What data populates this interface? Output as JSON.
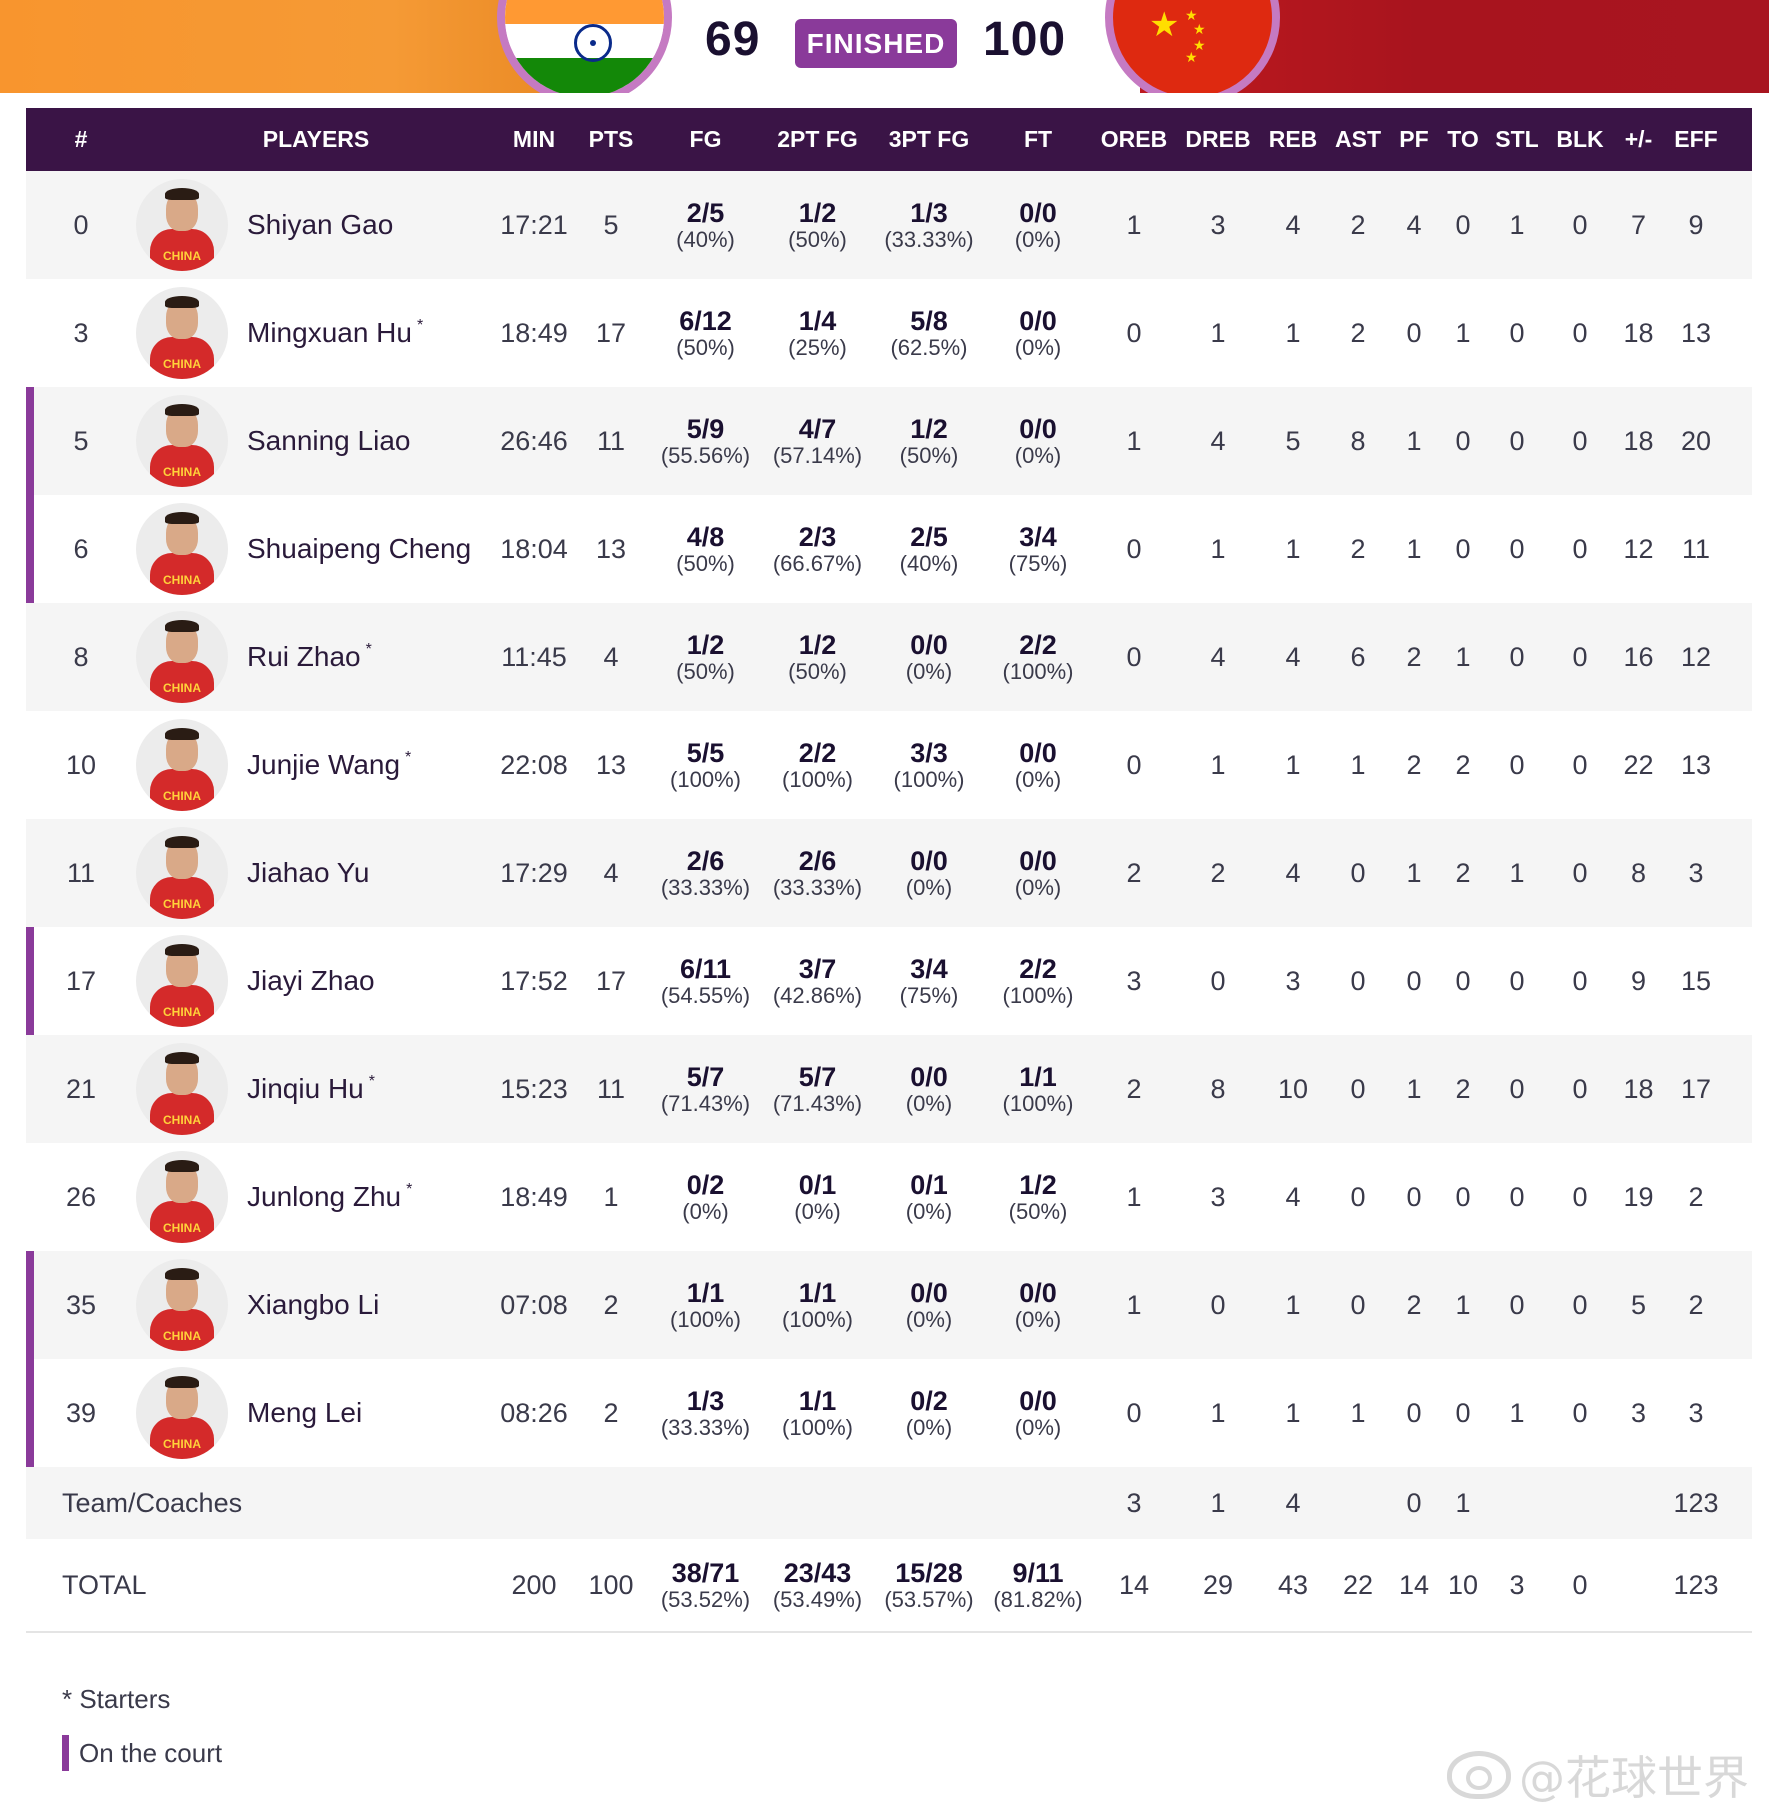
{
  "header": {
    "home_score": "69",
    "status": "FINISHED",
    "away_score": "100",
    "home_flag": "india-flag-icon",
    "away_flag": "china-flag-icon"
  },
  "colors": {
    "accent": "#8a3a9a",
    "header_bg": "#3a1446",
    "banner_left": "#f8952e",
    "banner_right": "#a8141e"
  },
  "columns": [
    "#",
    "PLAYERS",
    "MIN",
    "PTS",
    "FG",
    "2PT FG",
    "3PT FG",
    "FT",
    "OREB",
    "DREB",
    "REB",
    "AST",
    "PF",
    "TO",
    "STL",
    "BLK",
    "+/-",
    "EFF"
  ],
  "jersey_text": "CHINA",
  "starter_mark": "*",
  "players": [
    {
      "num": "0",
      "name": "Shiyan Gao",
      "starter": false,
      "oncourt": false,
      "min": "17:21",
      "pts": "5",
      "fg": {
        "made": "2/5",
        "pct": "(40%)"
      },
      "fg2": {
        "made": "1/2",
        "pct": "(50%)"
      },
      "fg3": {
        "made": "1/3",
        "pct": "(33.33%)"
      },
      "ft": {
        "made": "0/0",
        "pct": "(0%)"
      },
      "oreb": "1",
      "dreb": "3",
      "reb": "4",
      "ast": "2",
      "pf": "4",
      "to": "0",
      "stl": "1",
      "blk": "0",
      "pm": "7",
      "eff": "9"
    },
    {
      "num": "3",
      "name": "Mingxuan Hu",
      "starter": true,
      "oncourt": false,
      "min": "18:49",
      "pts": "17",
      "fg": {
        "made": "6/12",
        "pct": "(50%)"
      },
      "fg2": {
        "made": "1/4",
        "pct": "(25%)"
      },
      "fg3": {
        "made": "5/8",
        "pct": "(62.5%)"
      },
      "ft": {
        "made": "0/0",
        "pct": "(0%)"
      },
      "oreb": "0",
      "dreb": "1",
      "reb": "1",
      "ast": "2",
      "pf": "0",
      "to": "1",
      "stl": "0",
      "blk": "0",
      "pm": "18",
      "eff": "13"
    },
    {
      "num": "5",
      "name": "Sanning Liao",
      "starter": false,
      "oncourt": true,
      "min": "26:46",
      "pts": "11",
      "fg": {
        "made": "5/9",
        "pct": "(55.56%)"
      },
      "fg2": {
        "made": "4/7",
        "pct": "(57.14%)"
      },
      "fg3": {
        "made": "1/2",
        "pct": "(50%)"
      },
      "ft": {
        "made": "0/0",
        "pct": "(0%)"
      },
      "oreb": "1",
      "dreb": "4",
      "reb": "5",
      "ast": "8",
      "pf": "1",
      "to": "0",
      "stl": "0",
      "blk": "0",
      "pm": "18",
      "eff": "20"
    },
    {
      "num": "6",
      "name": "Shuaipeng Cheng",
      "starter": false,
      "oncourt": true,
      "min": "18:04",
      "pts": "13",
      "fg": {
        "made": "4/8",
        "pct": "(50%)"
      },
      "fg2": {
        "made": "2/3",
        "pct": "(66.67%)"
      },
      "fg3": {
        "made": "2/5",
        "pct": "(40%)"
      },
      "ft": {
        "made": "3/4",
        "pct": "(75%)"
      },
      "oreb": "0",
      "dreb": "1",
      "reb": "1",
      "ast": "2",
      "pf": "1",
      "to": "0",
      "stl": "0",
      "blk": "0",
      "pm": "12",
      "eff": "11"
    },
    {
      "num": "8",
      "name": "Rui Zhao",
      "starter": true,
      "oncourt": false,
      "min": "11:45",
      "pts": "4",
      "fg": {
        "made": "1/2",
        "pct": "(50%)"
      },
      "fg2": {
        "made": "1/2",
        "pct": "(50%)"
      },
      "fg3": {
        "made": "0/0",
        "pct": "(0%)"
      },
      "ft": {
        "made": "2/2",
        "pct": "(100%)"
      },
      "oreb": "0",
      "dreb": "4",
      "reb": "4",
      "ast": "6",
      "pf": "2",
      "to": "1",
      "stl": "0",
      "blk": "0",
      "pm": "16",
      "eff": "12"
    },
    {
      "num": "10",
      "name": "Junjie Wang",
      "starter": true,
      "oncourt": false,
      "min": "22:08",
      "pts": "13",
      "fg": {
        "made": "5/5",
        "pct": "(100%)"
      },
      "fg2": {
        "made": "2/2",
        "pct": "(100%)"
      },
      "fg3": {
        "made": "3/3",
        "pct": "(100%)"
      },
      "ft": {
        "made": "0/0",
        "pct": "(0%)"
      },
      "oreb": "0",
      "dreb": "1",
      "reb": "1",
      "ast": "1",
      "pf": "2",
      "to": "2",
      "stl": "0",
      "blk": "0",
      "pm": "22",
      "eff": "13"
    },
    {
      "num": "11",
      "name": "Jiahao Yu",
      "starter": false,
      "oncourt": false,
      "min": "17:29",
      "pts": "4",
      "fg": {
        "made": "2/6",
        "pct": "(33.33%)"
      },
      "fg2": {
        "made": "2/6",
        "pct": "(33.33%)"
      },
      "fg3": {
        "made": "0/0",
        "pct": "(0%)"
      },
      "ft": {
        "made": "0/0",
        "pct": "(0%)"
      },
      "oreb": "2",
      "dreb": "2",
      "reb": "4",
      "ast": "0",
      "pf": "1",
      "to": "2",
      "stl": "1",
      "blk": "0",
      "pm": "8",
      "eff": "3"
    },
    {
      "num": "17",
      "name": "Jiayi Zhao",
      "starter": false,
      "oncourt": true,
      "min": "17:52",
      "pts": "17",
      "fg": {
        "made": "6/11",
        "pct": "(54.55%)"
      },
      "fg2": {
        "made": "3/7",
        "pct": "(42.86%)"
      },
      "fg3": {
        "made": "3/4",
        "pct": "(75%)"
      },
      "ft": {
        "made": "2/2",
        "pct": "(100%)"
      },
      "oreb": "3",
      "dreb": "0",
      "reb": "3",
      "ast": "0",
      "pf": "0",
      "to": "0",
      "stl": "0",
      "blk": "0",
      "pm": "9",
      "eff": "15"
    },
    {
      "num": "21",
      "name": "Jinqiu Hu",
      "starter": true,
      "oncourt": false,
      "min": "15:23",
      "pts": "11",
      "fg": {
        "made": "5/7",
        "pct": "(71.43%)"
      },
      "fg2": {
        "made": "5/7",
        "pct": "(71.43%)"
      },
      "fg3": {
        "made": "0/0",
        "pct": "(0%)"
      },
      "ft": {
        "made": "1/1",
        "pct": "(100%)"
      },
      "oreb": "2",
      "dreb": "8",
      "reb": "10",
      "ast": "0",
      "pf": "1",
      "to": "2",
      "stl": "0",
      "blk": "0",
      "pm": "18",
      "eff": "17"
    },
    {
      "num": "26",
      "name": "Junlong Zhu",
      "starter": true,
      "oncourt": false,
      "min": "18:49",
      "pts": "1",
      "fg": {
        "made": "0/2",
        "pct": "(0%)"
      },
      "fg2": {
        "made": "0/1",
        "pct": "(0%)"
      },
      "fg3": {
        "made": "0/1",
        "pct": "(0%)"
      },
      "ft": {
        "made": "1/2",
        "pct": "(50%)"
      },
      "oreb": "1",
      "dreb": "3",
      "reb": "4",
      "ast": "0",
      "pf": "0",
      "to": "0",
      "stl": "0",
      "blk": "0",
      "pm": "19",
      "eff": "2"
    },
    {
      "num": "35",
      "name": "Xiangbo Li",
      "starter": false,
      "oncourt": true,
      "min": "07:08",
      "pts": "2",
      "fg": {
        "made": "1/1",
        "pct": "(100%)"
      },
      "fg2": {
        "made": "1/1",
        "pct": "(100%)"
      },
      "fg3": {
        "made": "0/0",
        "pct": "(0%)"
      },
      "ft": {
        "made": "0/0",
        "pct": "(0%)"
      },
      "oreb": "1",
      "dreb": "0",
      "reb": "1",
      "ast": "0",
      "pf": "2",
      "to": "1",
      "stl": "0",
      "blk": "0",
      "pm": "5",
      "eff": "2"
    },
    {
      "num": "39",
      "name": "Meng Lei",
      "starter": false,
      "oncourt": true,
      "min": "08:26",
      "pts": "2",
      "fg": {
        "made": "1/3",
        "pct": "(33.33%)"
      },
      "fg2": {
        "made": "1/1",
        "pct": "(100%)"
      },
      "fg3": {
        "made": "0/2",
        "pct": "(0%)"
      },
      "ft": {
        "made": "0/0",
        "pct": "(0%)"
      },
      "oreb": "0",
      "dreb": "1",
      "reb": "1",
      "ast": "1",
      "pf": "0",
      "to": "0",
      "stl": "1",
      "blk": "0",
      "pm": "3",
      "eff": "3"
    }
  ],
  "team_row": {
    "label": "Team/Coaches",
    "oreb": "3",
    "dreb": "1",
    "reb": "4",
    "ast": "",
    "pf": "0",
    "to": "1",
    "stl": "",
    "blk": "",
    "pm": "",
    "eff": "123"
  },
  "total_row": {
    "label": "TOTAL",
    "min": "200",
    "pts": "100",
    "fg": {
      "made": "38/71",
      "pct": "(53.52%)"
    },
    "fg2": {
      "made": "23/43",
      "pct": "(53.49%)"
    },
    "fg3": {
      "made": "15/28",
      "pct": "(53.57%)"
    },
    "ft": {
      "made": "9/11",
      "pct": "(81.82%)"
    },
    "oreb": "14",
    "dreb": "29",
    "reb": "43",
    "ast": "22",
    "pf": "14",
    "to": "10",
    "stl": "3",
    "blk": "0",
    "pm": "",
    "eff": "123"
  },
  "legend": {
    "starters": "* Starters",
    "oncourt": "On the court"
  },
  "watermark": "@花球世界",
  "watermark_icon": "weibo-icon"
}
